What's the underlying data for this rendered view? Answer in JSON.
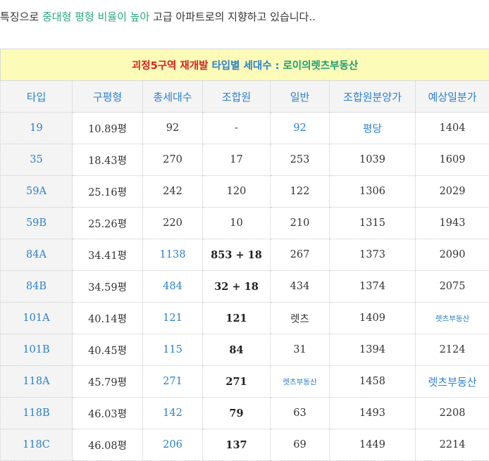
{
  "intro": {
    "before": "특징으로 ",
    "highlight": "중대형 평형 비율이 높아",
    "after": " 고급 아파트로의 지향하고 있습니다.."
  },
  "table": {
    "caption": {
      "part1": "괴정5구역 재개발 ",
      "part2": "타입별 세대수 : ",
      "part3": "로이의렛츠부동산"
    },
    "headers": [
      "타입",
      "구평형",
      "총세대수",
      "조합원",
      "일반",
      "조합원분양가",
      "예상일분가"
    ],
    "rows": [
      [
        "19",
        "10.89평",
        "92",
        "-",
        "92",
        "평당",
        "1404"
      ],
      [
        "35",
        "18.43평",
        "270",
        "17",
        "253",
        "1039",
        "1609"
      ],
      [
        "59A",
        "25.16평",
        "242",
        "120",
        "122",
        "1306",
        "2029"
      ],
      [
        "59B",
        "25.26평",
        "220",
        "10",
        "210",
        "1315",
        "1943"
      ],
      [
        "84A",
        "34.41평",
        "1138",
        "853 + 18",
        "267",
        "1373",
        "2090"
      ],
      [
        "84B",
        "34.59평",
        "484",
        "32 + 18",
        "434",
        "1374",
        "2075"
      ],
      [
        "101A",
        "40.14평",
        "121",
        "121",
        "렛츠",
        "1409",
        "렛츠부동산"
      ],
      [
        "101B",
        "40.45평",
        "115",
        "84",
        "31",
        "1394",
        "2124"
      ],
      [
        "118A",
        "45.79평",
        "271",
        "271",
        "렛츠부동산",
        "1458",
        "렛츠부동산"
      ],
      [
        "118B",
        "46.03평",
        "142",
        "79",
        "63",
        "1493",
        "2208"
      ],
      [
        "118C",
        "46.08평",
        "206",
        "137",
        "69",
        "1449",
        "2214"
      ]
    ]
  },
  "colors": {
    "highlight_green": "#2aa87a",
    "caption_bg": "#fdfbb8",
    "link_blue": "#2b7fcf",
    "caption_red": "#d62020"
  }
}
